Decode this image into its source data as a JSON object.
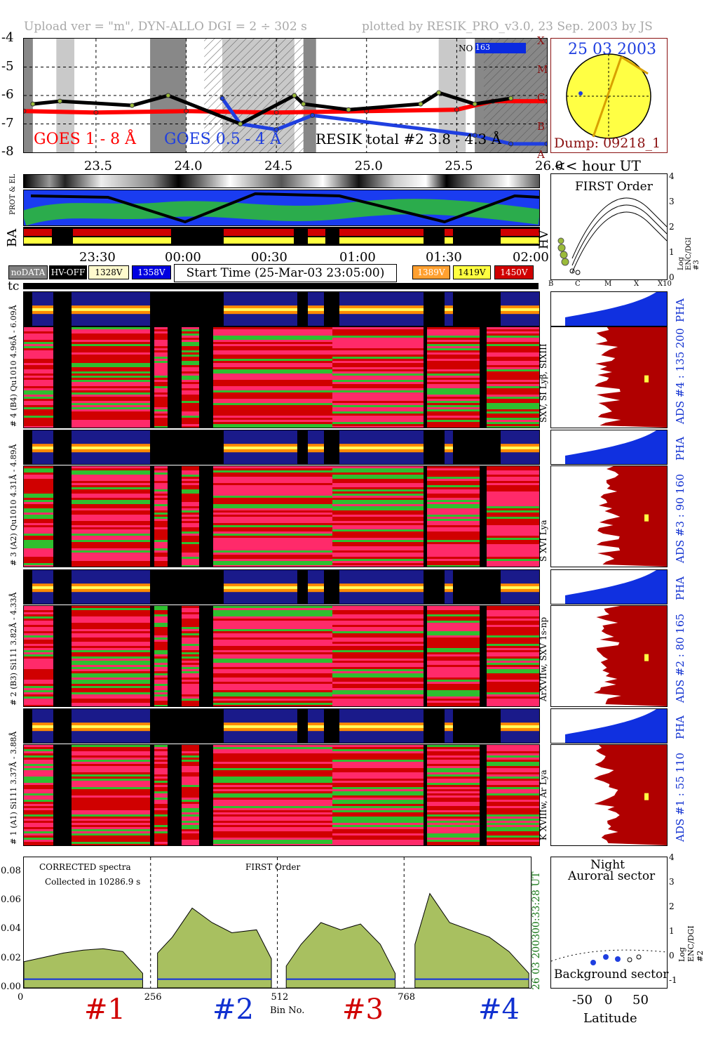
{
  "header": {
    "left": "Upload ver = \"m\", DYN-ALLO DGI =   2 ÷ 302 s",
    "right": "plotted by RESIK_PRO_v3.0, 23 Sep. 2003 by JS"
  },
  "goes": {
    "y_ticks": [
      "-4",
      "-5",
      "-6",
      "-7",
      "-8"
    ],
    "classes": [
      "X",
      "M",
      "C",
      "B",
      "A"
    ],
    "legend_goes18": "GOES 1 - 8 Å",
    "legend_goes054": "GOES 0.5 - 4 Å",
    "legend_resik": "RESIK total #2  3.8 - 4.3 Å",
    "no_label": "NO",
    "no_value": "163",
    "x_ticks": [
      "23.5",
      "24.0",
      "24.5",
      "25.0",
      "25.5",
      "26.0"
    ],
    "x_unit": "<< hour UT",
    "colors": {
      "goes18": "#ff0000",
      "goes054": "#1f3fe0",
      "resik": "#000000",
      "fill": "#9bbb3a"
    }
  },
  "sun": {
    "date": "25 03 2003",
    "dump": "Dump: 09218_1"
  },
  "orbit": {
    "row_labels": [
      "PROT & EL",
      "BA"
    ],
    "time_ticks": [
      "23:30",
      "00:00",
      "00:30",
      "01:00",
      "01:30",
      "02:00"
    ],
    "hv_label": "HV"
  },
  "legend": {
    "items": [
      {
        "label": "noDATA",
        "bg": "#808080",
        "fg": "#ffffff"
      },
      {
        "label": "HV-OFF",
        "bg": "#000000",
        "fg": "#ffffff"
      },
      {
        "label": "1328V",
        "bg": "#fffacd",
        "fg": "#000000"
      },
      {
        "label": "1358V",
        "bg": "#0000e0",
        "fg": "#ffffff"
      },
      {
        "label": "1389V",
        "bg": "#ffa030",
        "fg": "#ffffff"
      },
      {
        "label": "1419V",
        "bg": "#ffff40",
        "fg": "#000000"
      },
      {
        "label": "1450V",
        "bg": "#d00000",
        "fg": "#ffffff"
      }
    ],
    "start_time": "Start Time (25-Mar-03 23:05:00)",
    "tc": "tc"
  },
  "first_order": {
    "title": "FIRST Order",
    "ylabel": "Log ENC/DGI #3",
    "y_ticks": [
      "4",
      "3",
      "2",
      "1",
      "0"
    ],
    "x_ticks": [
      "B",
      "C",
      "M",
      "X",
      "X10"
    ]
  },
  "channels": [
    {
      "id": "4",
      "pha_label": "# 4 (B4) Qu1010 4.96Å - 6.09Å",
      "spec_lines": "SXV, SI Lyβ, SIXIII",
      "ads": "ADS #4 :  135 200"
    },
    {
      "id": "3",
      "pha_label": "# 3 (A2) Qu1010 4.31Å - 4.89Å",
      "spec_lines": "S XVI Lya",
      "ads": "ADS #3 :   90 160"
    },
    {
      "id": "2",
      "pha_label": "# 2 (B3) Si111 3.82Å - 4.33Å",
      "spec_lines": "ArXVIIw, SXV 1s-np",
      "ads": "ADS #2 :   80 165"
    },
    {
      "id": "1",
      "pha_label": "# 1 (A1) Si111 3.37Å - 3.88Å",
      "spec_lines": "K XVIIIw, Ar Lya",
      "ads": "ADS #1 :   55 110"
    }
  ],
  "pha_text": "PHA",
  "spectra": {
    "y_ticks": [
      "0.08",
      "0.06",
      "0.04",
      "0.02",
      "0.00"
    ],
    "corrected": "CORRECTED spectra",
    "collected": "Collected in 10286.9 s",
    "first_order": "FIRST Order",
    "x_ticks": [
      "0",
      "256",
      "512",
      "768"
    ],
    "xlabel": "Bin No.",
    "time_green": "00:33:28 UT",
    "date_green": "26 03 2003",
    "channel_labels": [
      {
        "text": "#1",
        "color": "#d00000"
      },
      {
        "text": "#2",
        "color": "#1030d0"
      },
      {
        "text": "#3",
        "color": "#d00000"
      },
      {
        "text": "#4",
        "color": "#1030d0"
      }
    ]
  },
  "aurora": {
    "title1": "Night",
    "title2": "Auroral sector",
    "bottom": "Background sector",
    "ylabel": "Log ENC/DGI #2",
    "y_ticks": [
      "4",
      "3",
      "2",
      "1",
      "0",
      "-1"
    ],
    "x_ticks": [
      "-50",
      "0",
      "50"
    ],
    "xlabel": "Latitude"
  },
  "chart_data": [
    {
      "type": "line",
      "title": "",
      "xlabel": "<< hour UT",
      "ylabel": "",
      "xlim": [
        23.1,
        26.0
      ],
      "ylim": [
        -8,
        -4
      ],
      "series": [
        {
          "name": "GOES 1 - 8 Å",
          "x": [
            23.1,
            23.5,
            24.0,
            24.5,
            25.0,
            25.5,
            25.7,
            26.0
          ],
          "y": [
            -6.55,
            -6.6,
            -6.55,
            -6.6,
            -6.55,
            -6.5,
            -6.2,
            -6.2
          ]
        },
        {
          "name": "GOES 0.5 - 4 Å",
          "x": [
            24.2,
            24.3,
            24.5,
            24.7,
            25.6,
            25.8,
            26.0
          ],
          "y": [
            -6.1,
            -7.0,
            -7.2,
            -6.7,
            -7.4,
            -7.7,
            -7.7
          ]
        },
        {
          "name": "RESIK total #2  3.8 - 4.3 Å",
          "x": [
            23.15,
            23.3,
            23.7,
            23.9,
            24.3,
            24.6,
            24.65,
            24.9,
            25.3,
            25.4,
            25.6,
            25.8
          ],
          "y": [
            -6.3,
            -6.2,
            -6.35,
            -6.0,
            -7.0,
            -6.0,
            -6.3,
            -6.5,
            -6.3,
            -5.9,
            -6.3,
            -6.1
          ]
        }
      ]
    },
    {
      "type": "area",
      "title": "",
      "xlabel": "Bin No.",
      "ylabel": "",
      "xlim": [
        0,
        1024
      ],
      "ylim": [
        0,
        0.09
      ],
      "series": [
        {
          "name": "#1",
          "x": [
            0,
            40,
            80,
            120,
            160,
            200,
            240
          ],
          "y": [
            0.018,
            0.021,
            0.024,
            0.026,
            0.027,
            0.025,
            0.01
          ]
        },
        {
          "name": "#2",
          "x": [
            270,
            300,
            340,
            380,
            420,
            470,
            500
          ],
          "y": [
            0.024,
            0.035,
            0.055,
            0.045,
            0.038,
            0.04,
            0.02
          ]
        },
        {
          "name": "#3",
          "x": [
            530,
            560,
            600,
            640,
            680,
            720,
            750
          ],
          "y": [
            0.015,
            0.03,
            0.045,
            0.04,
            0.044,
            0.03,
            0.01
          ]
        },
        {
          "name": "#4",
          "x": [
            790,
            820,
            860,
            900,
            940,
            980,
            1020
          ],
          "y": [
            0.03,
            0.065,
            0.045,
            0.04,
            0.035,
            0.025,
            0.01
          ]
        }
      ]
    }
  ]
}
